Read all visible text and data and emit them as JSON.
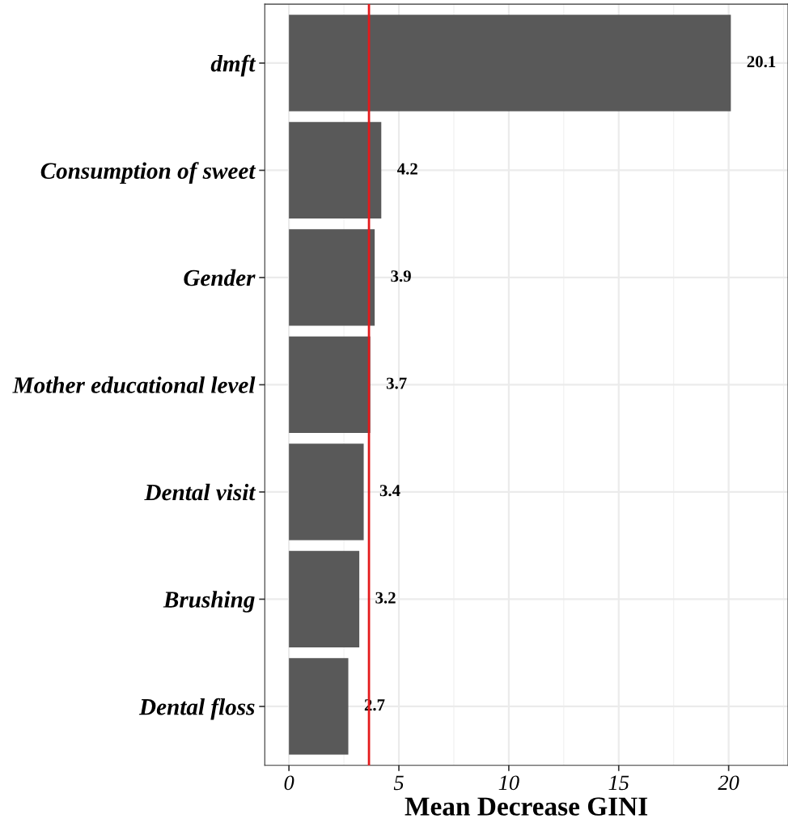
{
  "chart_data": {
    "type": "bar",
    "orientation": "horizontal",
    "xlabel": "Mean Decrease GINI",
    "categories": [
      "dmft",
      "Consumption of sweet",
      "Gender",
      "Mother educational level",
      "Dental visit",
      "Brushing",
      "Dental floss"
    ],
    "values": [
      20.1,
      4.2,
      3.9,
      3.7,
      3.4,
      3.2,
      2.7
    ],
    "color": "#595959",
    "data_labels": true,
    "xlim": [
      -1.1,
      22.7
    ],
    "xticks": [
      0,
      5,
      10,
      15,
      20
    ],
    "grid": true,
    "ref_lines": [
      {
        "axis": "x",
        "value": 3.64,
        "color": "#e41a1c"
      }
    ]
  }
}
